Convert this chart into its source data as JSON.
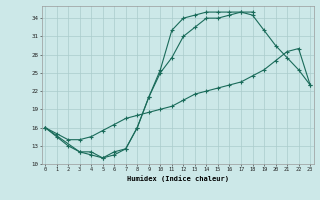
{
  "title": "",
  "xlabel": "Humidex (Indice chaleur)",
  "bg_color": "#cce8e8",
  "line_color": "#1a6b5a",
  "grid_color": "#aacccc",
  "curve1_x": [
    0,
    1,
    2,
    3,
    4,
    5,
    6,
    7,
    8,
    9,
    10,
    11,
    12,
    13,
    14,
    15,
    16,
    17,
    18
  ],
  "curve1_y": [
    16,
    14.5,
    13,
    12,
    11.5,
    11,
    11.5,
    12.5,
    16,
    21,
    25,
    27.5,
    31,
    32.5,
    34,
    34,
    34.5,
    35,
    35
  ],
  "curve2_x": [
    0,
    1,
    2,
    3,
    4,
    5,
    6,
    7,
    8,
    9,
    10,
    11,
    12,
    13,
    14,
    15,
    16,
    17,
    18,
    19,
    20,
    21,
    22,
    23
  ],
  "curve2_y": [
    16,
    15,
    14,
    14,
    14.5,
    15.5,
    16.5,
    17.5,
    18,
    18.5,
    19,
    19.5,
    20.5,
    21.5,
    22,
    22.5,
    23,
    23.5,
    24.5,
    25.5,
    27,
    28.5,
    29,
    23
  ],
  "curve3_x": [
    0,
    3,
    4,
    5,
    6,
    7,
    8,
    9,
    10,
    11,
    12,
    13,
    14,
    15,
    16,
    17,
    18,
    19,
    20,
    21,
    22,
    23
  ],
  "curve3_y": [
    16,
    12,
    12,
    11,
    12,
    12.5,
    16,
    21,
    25.5,
    32,
    34,
    34.5,
    35,
    35,
    35,
    35,
    34.5,
    32,
    29.5,
    27.5,
    25.5,
    23
  ],
  "xlim": [
    0,
    23
  ],
  "ylim": [
    10,
    36
  ],
  "yticks": [
    10,
    13,
    16,
    19,
    22,
    25,
    28,
    31,
    34
  ],
  "xticks": [
    0,
    1,
    2,
    3,
    4,
    5,
    6,
    7,
    8,
    9,
    10,
    11,
    12,
    13,
    14,
    15,
    16,
    17,
    18,
    19,
    20,
    21,
    22,
    23
  ]
}
